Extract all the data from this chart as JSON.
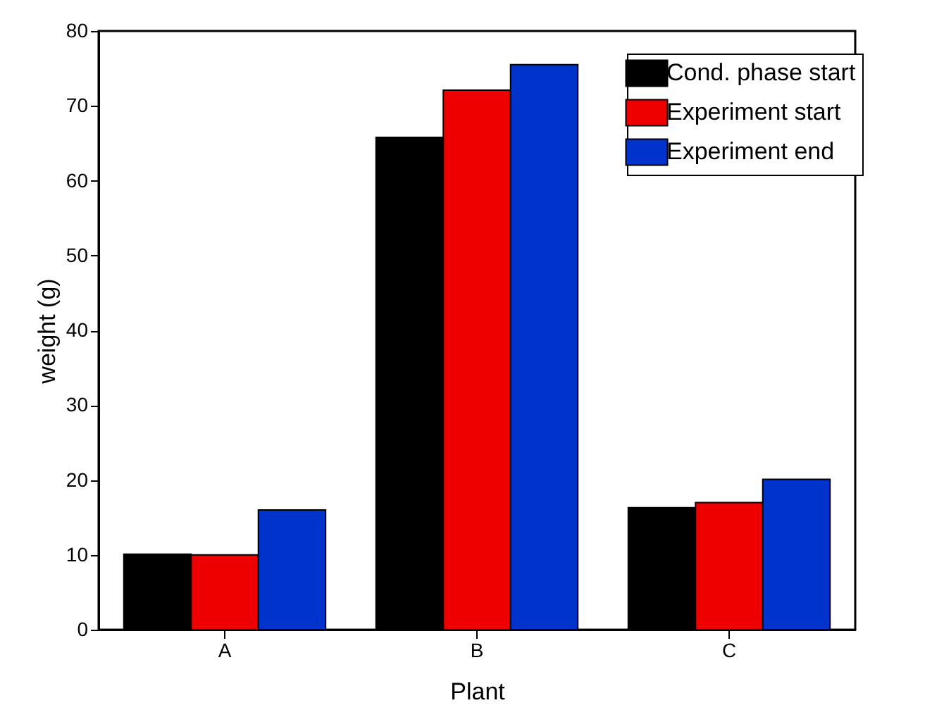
{
  "chart_data": {
    "type": "bar",
    "xlabel": "Plant",
    "ylabel": "weight (g)",
    "categories": [
      "A",
      "B",
      "C"
    ],
    "series": [
      {
        "name": "Cond. phase start",
        "color": "#000000",
        "values": [
          10.1,
          65.8,
          16.3
        ]
      },
      {
        "name": "Experiment start",
        "color": "#ee0000",
        "values": [
          10.0,
          72.1,
          17.0
        ]
      },
      {
        "name": "Experiment end",
        "color": "#0033cc",
        "values": [
          16.0,
          75.5,
          20.1
        ]
      }
    ],
    "ylim": [
      0,
      80
    ],
    "yticks": [
      0,
      10,
      20,
      30,
      40,
      50,
      60,
      70,
      80
    ],
    "grid": false,
    "legend": "top right"
  }
}
